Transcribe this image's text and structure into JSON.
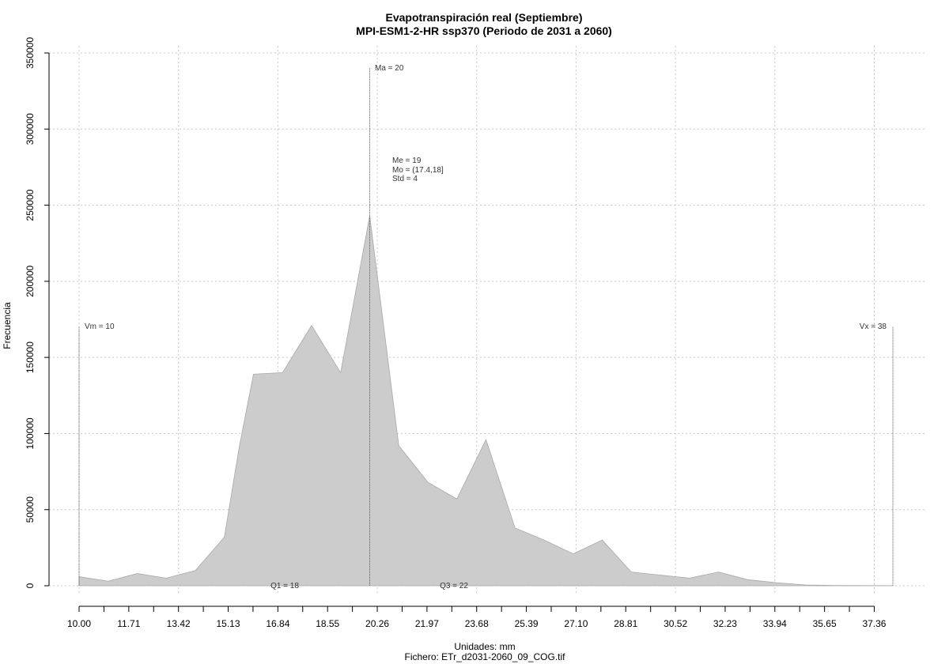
{
  "chart_data": {
    "type": "area",
    "title": "Evapotranspiración real (Septiembre)",
    "subtitle": "MPI-ESM1-2-HR ssp370 (Periodo de 2031 a 2060)",
    "xlabel": "Unidades: mm",
    "caption": "Fichero: ETr_d2031-2060_09_COG.tif",
    "ylabel": "Frecuencia",
    "xlim": [
      10,
      38
    ],
    "ylim": [
      0,
      350000
    ],
    "x_ticks": [
      "10.00",
      "11.71",
      "13.42",
      "15.13",
      "16.84",
      "18.55",
      "20.26",
      "21.97",
      "23.68",
      "25.39",
      "27.10",
      "28.81",
      "30.52",
      "32.23",
      "33.94",
      "35.65",
      "37.36"
    ],
    "x_tick_values": [
      10.0,
      11.71,
      13.42,
      15.13,
      16.84,
      18.55,
      20.26,
      21.97,
      23.68,
      25.39,
      27.1,
      28.81,
      30.52,
      32.23,
      33.94,
      35.65,
      37.36
    ],
    "y_ticks": [
      "0",
      "50000",
      "100000",
      "150000",
      "200000",
      "250000",
      "300000",
      "350000"
    ],
    "y_tick_values": [
      0,
      50000,
      100000,
      150000,
      200000,
      250000,
      300000,
      350000
    ],
    "grid": true,
    "fill_color": "#cccccc",
    "series": [
      {
        "x": [
          10.0,
          11.0,
          12.0,
          13.0,
          14.0,
          15.0,
          15.5,
          16.0,
          17.0,
          18.0,
          19.0,
          20.0,
          21.0,
          22.0,
          23.0,
          24.0,
          25.0,
          26.0,
          27.0,
          28.0,
          29.0,
          30.0,
          31.0,
          32.0,
          33.0,
          34.0,
          35.0,
          36.0,
          37.0,
          38.0
        ],
        "y": [
          6000,
          3000,
          8000,
          5000,
          10000,
          32000,
          90000,
          139000,
          140000,
          171000,
          140000,
          243000,
          92000,
          68000,
          57000,
          96000,
          38000,
          30000,
          21000,
          30000,
          9000,
          7000,
          5000,
          9000,
          4000,
          2000,
          500,
          200,
          100,
          50
        ]
      }
    ],
    "annotations": {
      "vm": {
        "label": "Vm = 10",
        "x": 10,
        "top": 170000
      },
      "vx": {
        "label": "Vx = 38",
        "x": 38,
        "top": 170000
      },
      "ma": {
        "label": "Ma = 20",
        "x": 20,
        "top": 340000
      },
      "stats": [
        "Me = 19",
        "Mo = (17.4,18]",
        "Std = 4"
      ],
      "q1": {
        "label": "Q1 = 18",
        "x": 18
      },
      "q3": {
        "label": "Q3 = 22",
        "x": 22
      }
    }
  }
}
